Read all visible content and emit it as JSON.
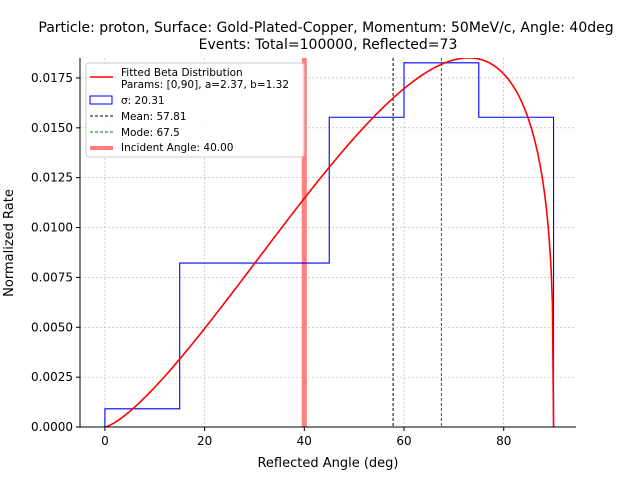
{
  "chart_data": {
    "type": "histogram",
    "title": "Particle: proton, Surface: Gold-Plated-Copper, Momentum: 50MeV/c, Angle: 40deg",
    "subtitle": "Events: Total=100000, Reflected=73",
    "xlabel": "Reflected Angle (deg)",
    "ylabel": "Normalized Rate",
    "xlim": [
      -5,
      94.5
    ],
    "ylim": [
      0,
      0.0185
    ],
    "x_ticks": [
      0,
      20,
      40,
      60,
      80
    ],
    "y_ticks": [
      0.0,
      0.0025,
      0.005,
      0.0075,
      0.01,
      0.0125,
      0.015,
      0.0175
    ],
    "x_tick_labels": [
      "0",
      "20",
      "40",
      "60",
      "80"
    ],
    "y_tick_labels": [
      "0.0000",
      "0.0025",
      "0.0050",
      "0.0075",
      "0.0100",
      "0.0125",
      "0.0150",
      "0.0175"
    ],
    "grid": true,
    "histogram": {
      "bin_edges": [
        0,
        15,
        30,
        45,
        60,
        75,
        90
      ],
      "values": [
        0.00091,
        0.00822,
        0.00822,
        0.01553,
        0.01826,
        0.01553
      ],
      "color": "#0000ff"
    },
    "fit": {
      "distribution": "beta",
      "range": [
        0,
        90
      ],
      "a": 2.37,
      "b": 1.32,
      "color": "#ff0000"
    },
    "lines": {
      "mean": 57.81,
      "mode": 67.5,
      "incident": 40.0,
      "mean_color": "#000000",
      "mode_color": "#008000",
      "incident_color": "#ff7f7f"
    },
    "legend": {
      "position": "upper-left",
      "entries": [
        "Fitted Beta Distribution",
        "Params: [0,90], a=2.37, b=1.32",
        "σ: 20.31",
        "Mean: 57.81",
        "Mode: 67.5",
        "Incident Angle: 40.00"
      ]
    }
  }
}
